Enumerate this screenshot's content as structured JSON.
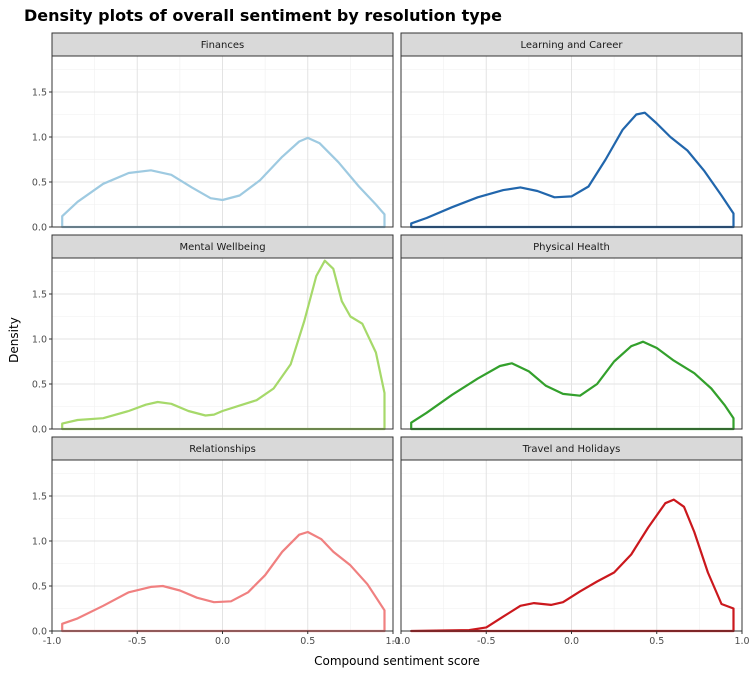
{
  "chart_data": {
    "type": "area",
    "title": "Density plots of overall sentiment by resolution type",
    "xlabel": "Compound sentiment score",
    "ylabel": "Density",
    "xlim": [
      -1,
      1
    ],
    "ylim": [
      0,
      1.9
    ],
    "x_ticks": [
      -1.0,
      -0.5,
      0.0,
      0.5,
      1.0
    ],
    "x_tick_labels": [
      "-1.0",
      "-0.5",
      "0.0",
      "0.5",
      "1.0"
    ],
    "y_ticks": [
      0,
      0.5,
      1.0,
      1.5
    ],
    "y_tick_labels": [
      "0.0",
      "0.5",
      "1.0",
      "1.5"
    ],
    "grid": true,
    "legend": "none",
    "layout": "facet grid 2 columns x 3 rows",
    "series": [
      {
        "name": "Finances",
        "color": "#9ecae1",
        "points": [
          [
            -0.94,
            0.12
          ],
          [
            -0.85,
            0.28
          ],
          [
            -0.7,
            0.48
          ],
          [
            -0.55,
            0.6
          ],
          [
            -0.42,
            0.63
          ],
          [
            -0.3,
            0.58
          ],
          [
            -0.18,
            0.44
          ],
          [
            -0.07,
            0.32
          ],
          [
            0.0,
            0.3
          ],
          [
            0.1,
            0.35
          ],
          [
            0.22,
            0.52
          ],
          [
            0.35,
            0.78
          ],
          [
            0.45,
            0.95
          ],
          [
            0.5,
            0.99
          ],
          [
            0.57,
            0.93
          ],
          [
            0.68,
            0.72
          ],
          [
            0.8,
            0.45
          ],
          [
            0.9,
            0.25
          ],
          [
            0.95,
            0.14
          ]
        ]
      },
      {
        "name": "Learning and Career",
        "color": "#2166ac",
        "points": [
          [
            -0.94,
            0.04
          ],
          [
            -0.85,
            0.1
          ],
          [
            -0.7,
            0.22
          ],
          [
            -0.55,
            0.33
          ],
          [
            -0.4,
            0.41
          ],
          [
            -0.3,
            0.44
          ],
          [
            -0.2,
            0.4
          ],
          [
            -0.1,
            0.33
          ],
          [
            0.0,
            0.34
          ],
          [
            0.1,
            0.45
          ],
          [
            0.2,
            0.75
          ],
          [
            0.3,
            1.08
          ],
          [
            0.38,
            1.25
          ],
          [
            0.43,
            1.27
          ],
          [
            0.5,
            1.15
          ],
          [
            0.58,
            1.0
          ],
          [
            0.68,
            0.85
          ],
          [
            0.78,
            0.62
          ],
          [
            0.88,
            0.35
          ],
          [
            0.95,
            0.15
          ]
        ]
      },
      {
        "name": "Mental Wellbeing",
        "color": "#a6d96a",
        "points": [
          [
            -0.94,
            0.06
          ],
          [
            -0.85,
            0.1
          ],
          [
            -0.7,
            0.12
          ],
          [
            -0.55,
            0.2
          ],
          [
            -0.45,
            0.27
          ],
          [
            -0.38,
            0.3
          ],
          [
            -0.3,
            0.28
          ],
          [
            -0.2,
            0.2
          ],
          [
            -0.1,
            0.15
          ],
          [
            -0.05,
            0.16
          ],
          [
            0.0,
            0.2
          ],
          [
            0.1,
            0.26
          ],
          [
            0.2,
            0.32
          ],
          [
            0.3,
            0.45
          ],
          [
            0.4,
            0.72
          ],
          [
            0.48,
            1.2
          ],
          [
            0.55,
            1.7
          ],
          [
            0.6,
            1.87
          ],
          [
            0.65,
            1.78
          ],
          [
            0.7,
            1.42
          ],
          [
            0.75,
            1.25
          ],
          [
            0.82,
            1.17
          ],
          [
            0.9,
            0.85
          ],
          [
            0.95,
            0.4
          ]
        ]
      },
      {
        "name": "Physical Health",
        "color": "#33a02c",
        "points": [
          [
            -0.94,
            0.07
          ],
          [
            -0.85,
            0.18
          ],
          [
            -0.7,
            0.38
          ],
          [
            -0.55,
            0.56
          ],
          [
            -0.42,
            0.7
          ],
          [
            -0.35,
            0.73
          ],
          [
            -0.25,
            0.64
          ],
          [
            -0.15,
            0.48
          ],
          [
            -0.05,
            0.39
          ],
          [
            0.05,
            0.37
          ],
          [
            0.15,
            0.5
          ],
          [
            0.25,
            0.75
          ],
          [
            0.35,
            0.92
          ],
          [
            0.42,
            0.97
          ],
          [
            0.5,
            0.9
          ],
          [
            0.6,
            0.76
          ],
          [
            0.72,
            0.62
          ],
          [
            0.82,
            0.45
          ],
          [
            0.9,
            0.26
          ],
          [
            0.95,
            0.12
          ]
        ]
      },
      {
        "name": "Relationships",
        "color": "#f08080",
        "points": [
          [
            -0.94,
            0.08
          ],
          [
            -0.85,
            0.14
          ],
          [
            -0.7,
            0.28
          ],
          [
            -0.55,
            0.43
          ],
          [
            -0.42,
            0.49
          ],
          [
            -0.35,
            0.5
          ],
          [
            -0.25,
            0.45
          ],
          [
            -0.15,
            0.37
          ],
          [
            -0.05,
            0.32
          ],
          [
            0.05,
            0.33
          ],
          [
            0.15,
            0.43
          ],
          [
            0.25,
            0.62
          ],
          [
            0.35,
            0.88
          ],
          [
            0.45,
            1.07
          ],
          [
            0.5,
            1.1
          ],
          [
            0.58,
            1.02
          ],
          [
            0.65,
            0.88
          ],
          [
            0.75,
            0.73
          ],
          [
            0.85,
            0.52
          ],
          [
            0.95,
            0.23
          ]
        ]
      },
      {
        "name": "Travel and Holidays",
        "color": "#cb181d",
        "points": [
          [
            -0.94,
            0.0
          ],
          [
            -0.6,
            0.01
          ],
          [
            -0.5,
            0.04
          ],
          [
            -0.4,
            0.16
          ],
          [
            -0.3,
            0.28
          ],
          [
            -0.22,
            0.31
          ],
          [
            -0.12,
            0.29
          ],
          [
            -0.05,
            0.32
          ],
          [
            0.05,
            0.44
          ],
          [
            0.15,
            0.55
          ],
          [
            0.25,
            0.65
          ],
          [
            0.35,
            0.85
          ],
          [
            0.45,
            1.15
          ],
          [
            0.55,
            1.42
          ],
          [
            0.6,
            1.46
          ],
          [
            0.66,
            1.38
          ],
          [
            0.72,
            1.1
          ],
          [
            0.8,
            0.65
          ],
          [
            0.88,
            0.3
          ],
          [
            0.95,
            0.25
          ]
        ]
      }
    ]
  }
}
